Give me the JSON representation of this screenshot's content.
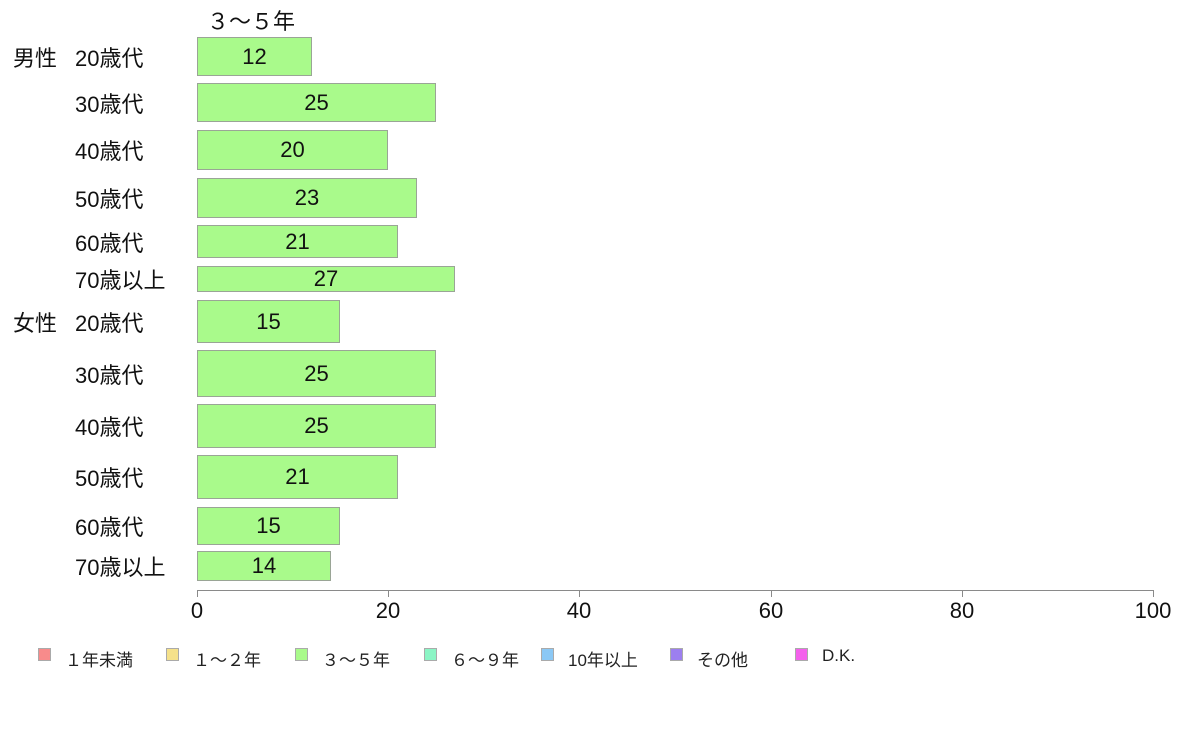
{
  "chart_data": {
    "type": "bar",
    "orientation": "horizontal",
    "title": "３〜５年",
    "categories": [
      {
        "prefix": "男性",
        "label": "20歳代"
      },
      {
        "prefix": "",
        "label": "30歳代"
      },
      {
        "prefix": "",
        "label": "40歳代"
      },
      {
        "prefix": "",
        "label": "50歳代"
      },
      {
        "prefix": "",
        "label": "60歳代"
      },
      {
        "prefix": "",
        "label": "70歳以上"
      },
      {
        "prefix": "女性",
        "label": "20歳代"
      },
      {
        "prefix": "",
        "label": "30歳代"
      },
      {
        "prefix": "",
        "label": "40歳代"
      },
      {
        "prefix": "",
        "label": "50歳代"
      },
      {
        "prefix": "",
        "label": "60歳代"
      },
      {
        "prefix": "",
        "label": "70歳以上"
      }
    ],
    "values": [
      12,
      25,
      20,
      23,
      21,
      27,
      15,
      25,
      25,
      21,
      15,
      14
    ],
    "xlabel": "",
    "ylabel": "",
    "xlim": [
      0,
      100
    ],
    "x_ticks": [
      0,
      20,
      40,
      60,
      80,
      100
    ],
    "grid": false,
    "bar_color": "#a9fa8b",
    "bar_border_color": "#9aa596",
    "legend_position": "bottom",
    "legend": [
      {
        "label": "１年未満",
        "color": "#f88b8b"
      },
      {
        "label": "１〜２年",
        "color": "#f5e18a"
      },
      {
        "label": "３〜５年",
        "color": "#a9fa8b"
      },
      {
        "label": "６〜９年",
        "color": "#8bf5c5"
      },
      {
        "label": "10年以上",
        "color": "#8bc8f5"
      },
      {
        "label": "その他",
        "color": "#9c7fef"
      },
      {
        "label": "D.K.",
        "color": "#f461ec"
      }
    ]
  }
}
